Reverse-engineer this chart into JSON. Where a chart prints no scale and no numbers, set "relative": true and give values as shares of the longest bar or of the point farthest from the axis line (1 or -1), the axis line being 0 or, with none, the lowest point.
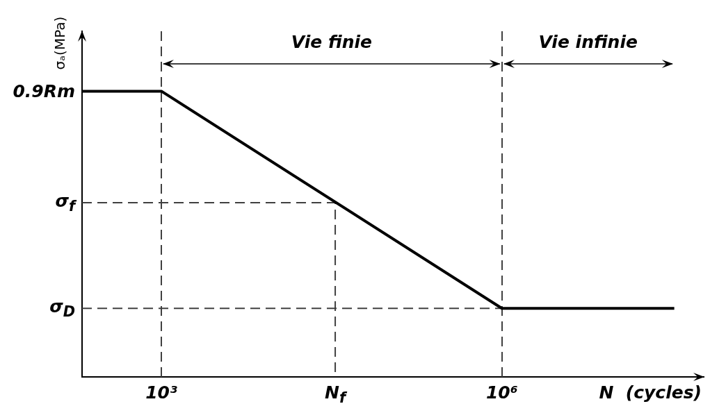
{
  "chart_data": {
    "type": "line",
    "xlabel": "N  (cycles)",
    "ylabel": "σₐ(MPa)",
    "log": "x",
    "relative": true,
    "xlim": [
      200,
      60000000
    ],
    "xticks": [
      {
        "value": 1000,
        "label": "10³"
      },
      {
        "value": 34000,
        "label": "N$_{f}$"
      },
      {
        "value": 1000000,
        "label": "10⁶"
      }
    ],
    "series": [
      {
        "color": "#000000",
        "x": [
          200,
          1000,
          1000000,
          33000000
        ],
        "values": [
          1,
          1,
          0.24,
          0.24
        ]
      },
      {
        "color": "#404040",
        "line_style": "dashed",
        "x": [
          200,
          34000,
          34000
        ],
        "values": [
          0.61,
          0.61,
          0
        ]
      },
      {
        "color": "#404040",
        "line_style": "dashed",
        "x": [
          200,
          1000000
        ],
        "values": [
          0.24,
          0.24
        ]
      }
    ],
    "ref_lines": [
      {
        "axis": "x",
        "value": 1000,
        "color": "#404040",
        "line_style": "dashed"
      },
      {
        "axis": "x",
        "value": 1000000,
        "color": "#404040",
        "line_style": "dashed"
      }
    ],
    "annotations": [
      "Vie finie",
      "Vie infinie",
      "0.9Rm",
      "σ$_{f}$",
      "σ$_{D}$"
    ],
    "line_style": "solid",
    "marker": "none",
    "grid": false,
    "legend": false
  }
}
